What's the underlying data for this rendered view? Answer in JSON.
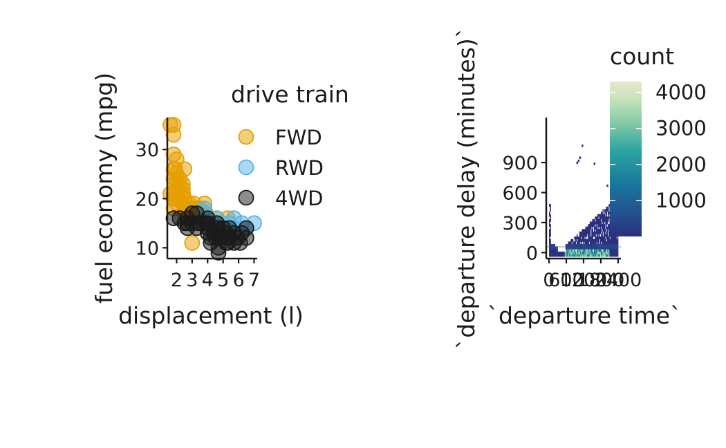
{
  "chart_data": [
    {
      "type": "scatter",
      "xlabel": "displacement (l)",
      "ylabel": "fuel economy (mpg)",
      "xlim": [
        1.4,
        7.2
      ],
      "ylim": [
        7.8,
        36.5
      ],
      "x_ticks": [
        "2",
        "3",
        "4",
        "5",
        "6",
        "7"
      ],
      "y_ticks": [
        "10",
        "20",
        "30"
      ],
      "legend": {
        "title": "drive train",
        "position": "right"
      },
      "series": [
        {
          "name": "FWD",
          "color": "#E69F00",
          "points": [
            [
              1.6,
              35
            ],
            [
              1.8,
              33
            ],
            [
              1.8,
              35
            ],
            [
              1.8,
              29
            ],
            [
              2.0,
              28
            ],
            [
              1.9,
              26
            ],
            [
              1.8,
              26
            ],
            [
              2.0,
              25
            ],
            [
              2.0,
              24
            ],
            [
              1.8,
              24
            ],
            [
              2.0,
              23
            ],
            [
              2.2,
              23
            ],
            [
              2.0,
              22
            ],
            [
              1.8,
              21
            ],
            [
              2.0,
              21
            ],
            [
              2.4,
              22
            ],
            [
              2.4,
              21
            ],
            [
              2.5,
              20
            ],
            [
              2.4,
              19
            ],
            [
              2.0,
              19
            ],
            [
              2.8,
              19
            ],
            [
              2.5,
              18
            ],
            [
              1.8,
              18
            ],
            [
              3.0,
              18
            ],
            [
              3.1,
              18
            ],
            [
              3.3,
              18
            ],
            [
              3.8,
              19
            ],
            [
              3.4,
              17
            ],
            [
              3.3,
              17
            ],
            [
              2.5,
              17
            ],
            [
              2.8,
              17
            ],
            [
              3.0,
              16
            ],
            [
              3.6,
              17
            ],
            [
              3.8,
              16
            ],
            [
              4.6,
              16
            ],
            [
              5.3,
              16
            ],
            [
              2.8,
              16
            ],
            [
              3.0,
              11
            ],
            [
              2.4,
              21
            ],
            [
              2.0,
              20
            ],
            [
              1.8,
              20
            ],
            [
              1.6,
              21
            ],
            [
              2.2,
              24
            ],
            [
              2.5,
              26
            ],
            [
              2.4,
              23
            ],
            [
              3.1,
              19
            ],
            [
              3.5,
              18
            ],
            [
              3.9,
              17
            ]
          ]
        },
        {
          "name": "RWD",
          "color": "#56B4E9",
          "points": [
            [
              3.8,
              17
            ],
            [
              4.2,
              15
            ],
            [
              4.6,
              15
            ],
            [
              5.4,
              15
            ],
            [
              5.7,
              16
            ],
            [
              6.2,
              15
            ],
            [
              6.5,
              14
            ],
            [
              7.0,
              15
            ],
            [
              5.3,
              14
            ],
            [
              5.7,
              13
            ],
            [
              6.0,
              12
            ],
            [
              4.0,
              14
            ],
            [
              4.6,
              16
            ],
            [
              5.4,
              12
            ],
            [
              5.9,
              12
            ],
            [
              4.7,
              13
            ],
            [
              5.7,
              14
            ],
            [
              4.0,
              16
            ],
            [
              3.8,
              18
            ],
            [
              4.5,
              15
            ]
          ]
        },
        {
          "name": "4WD",
          "color": "#1a1a1a",
          "points": [
            [
              1.8,
              16
            ],
            [
              2.7,
              15
            ],
            [
              2.7,
              16
            ],
            [
              3.0,
              17
            ],
            [
              3.3,
              17
            ],
            [
              3.7,
              15
            ],
            [
              4.0,
              15
            ],
            [
              4.0,
              14
            ],
            [
              4.2,
              12
            ],
            [
              4.4,
              13
            ],
            [
              4.6,
              15
            ],
            [
              4.7,
              12
            ],
            [
              4.7,
              13
            ],
            [
              5.2,
              13
            ],
            [
              5.3,
              12
            ],
            [
              5.4,
              12
            ],
            [
              5.7,
              13
            ],
            [
              6.5,
              14
            ],
            [
              4.0,
              16
            ],
            [
              3.0,
              15
            ],
            [
              2.5,
              15
            ],
            [
              2.7,
              14
            ],
            [
              3.4,
              15
            ],
            [
              4.7,
              9
            ],
            [
              4.7,
              10
            ],
            [
              5.2,
              11
            ],
            [
              5.7,
              11
            ],
            [
              6.1,
              11
            ],
            [
              6.5,
              12
            ],
            [
              6.2,
              13
            ],
            [
              4.0,
              13
            ],
            [
              4.2,
              11
            ],
            [
              4.6,
              14
            ],
            [
              5.3,
              11
            ],
            [
              2.2,
              16
            ],
            [
              3.3,
              14
            ],
            [
              3.9,
              15
            ],
            [
              4.7,
              14
            ],
            [
              5.0,
              14
            ],
            [
              5.9,
              12
            ],
            [
              4.5,
              12
            ],
            [
              5.4,
              14
            ]
          ]
        }
      ]
    },
    {
      "type": "heatmap",
      "xlabel": "`departure time`",
      "ylabel": "`departure delay (minutes)`",
      "xlim": [
        0,
        2400
      ],
      "ylim": [
        -60,
        1350
      ],
      "x_ticks": [
        {
          "value": 0,
          "label": "0"
        },
        {
          "value": 600,
          "label": "600"
        },
        {
          "value": 1200,
          "label": "1200"
        },
        {
          "value": 1800,
          "label": "1800"
        },
        {
          "value": 2400,
          "label": "2400"
        }
      ],
      "y_ticks": [
        "0",
        "300",
        "600",
        "900"
      ],
      "legend": {
        "title": "count",
        "position": "right",
        "min": 1,
        "max": 4300,
        "breaks": [
          "1000",
          "2000",
          "3000",
          "4000"
        ]
      },
      "colorscale": [
        "#2c2f7e",
        "#22518f",
        "#1a7a9c",
        "#2ba3a2",
        "#7cc8a4",
        "#c2e3b8",
        "#e9e6cf"
      ]
    }
  ]
}
